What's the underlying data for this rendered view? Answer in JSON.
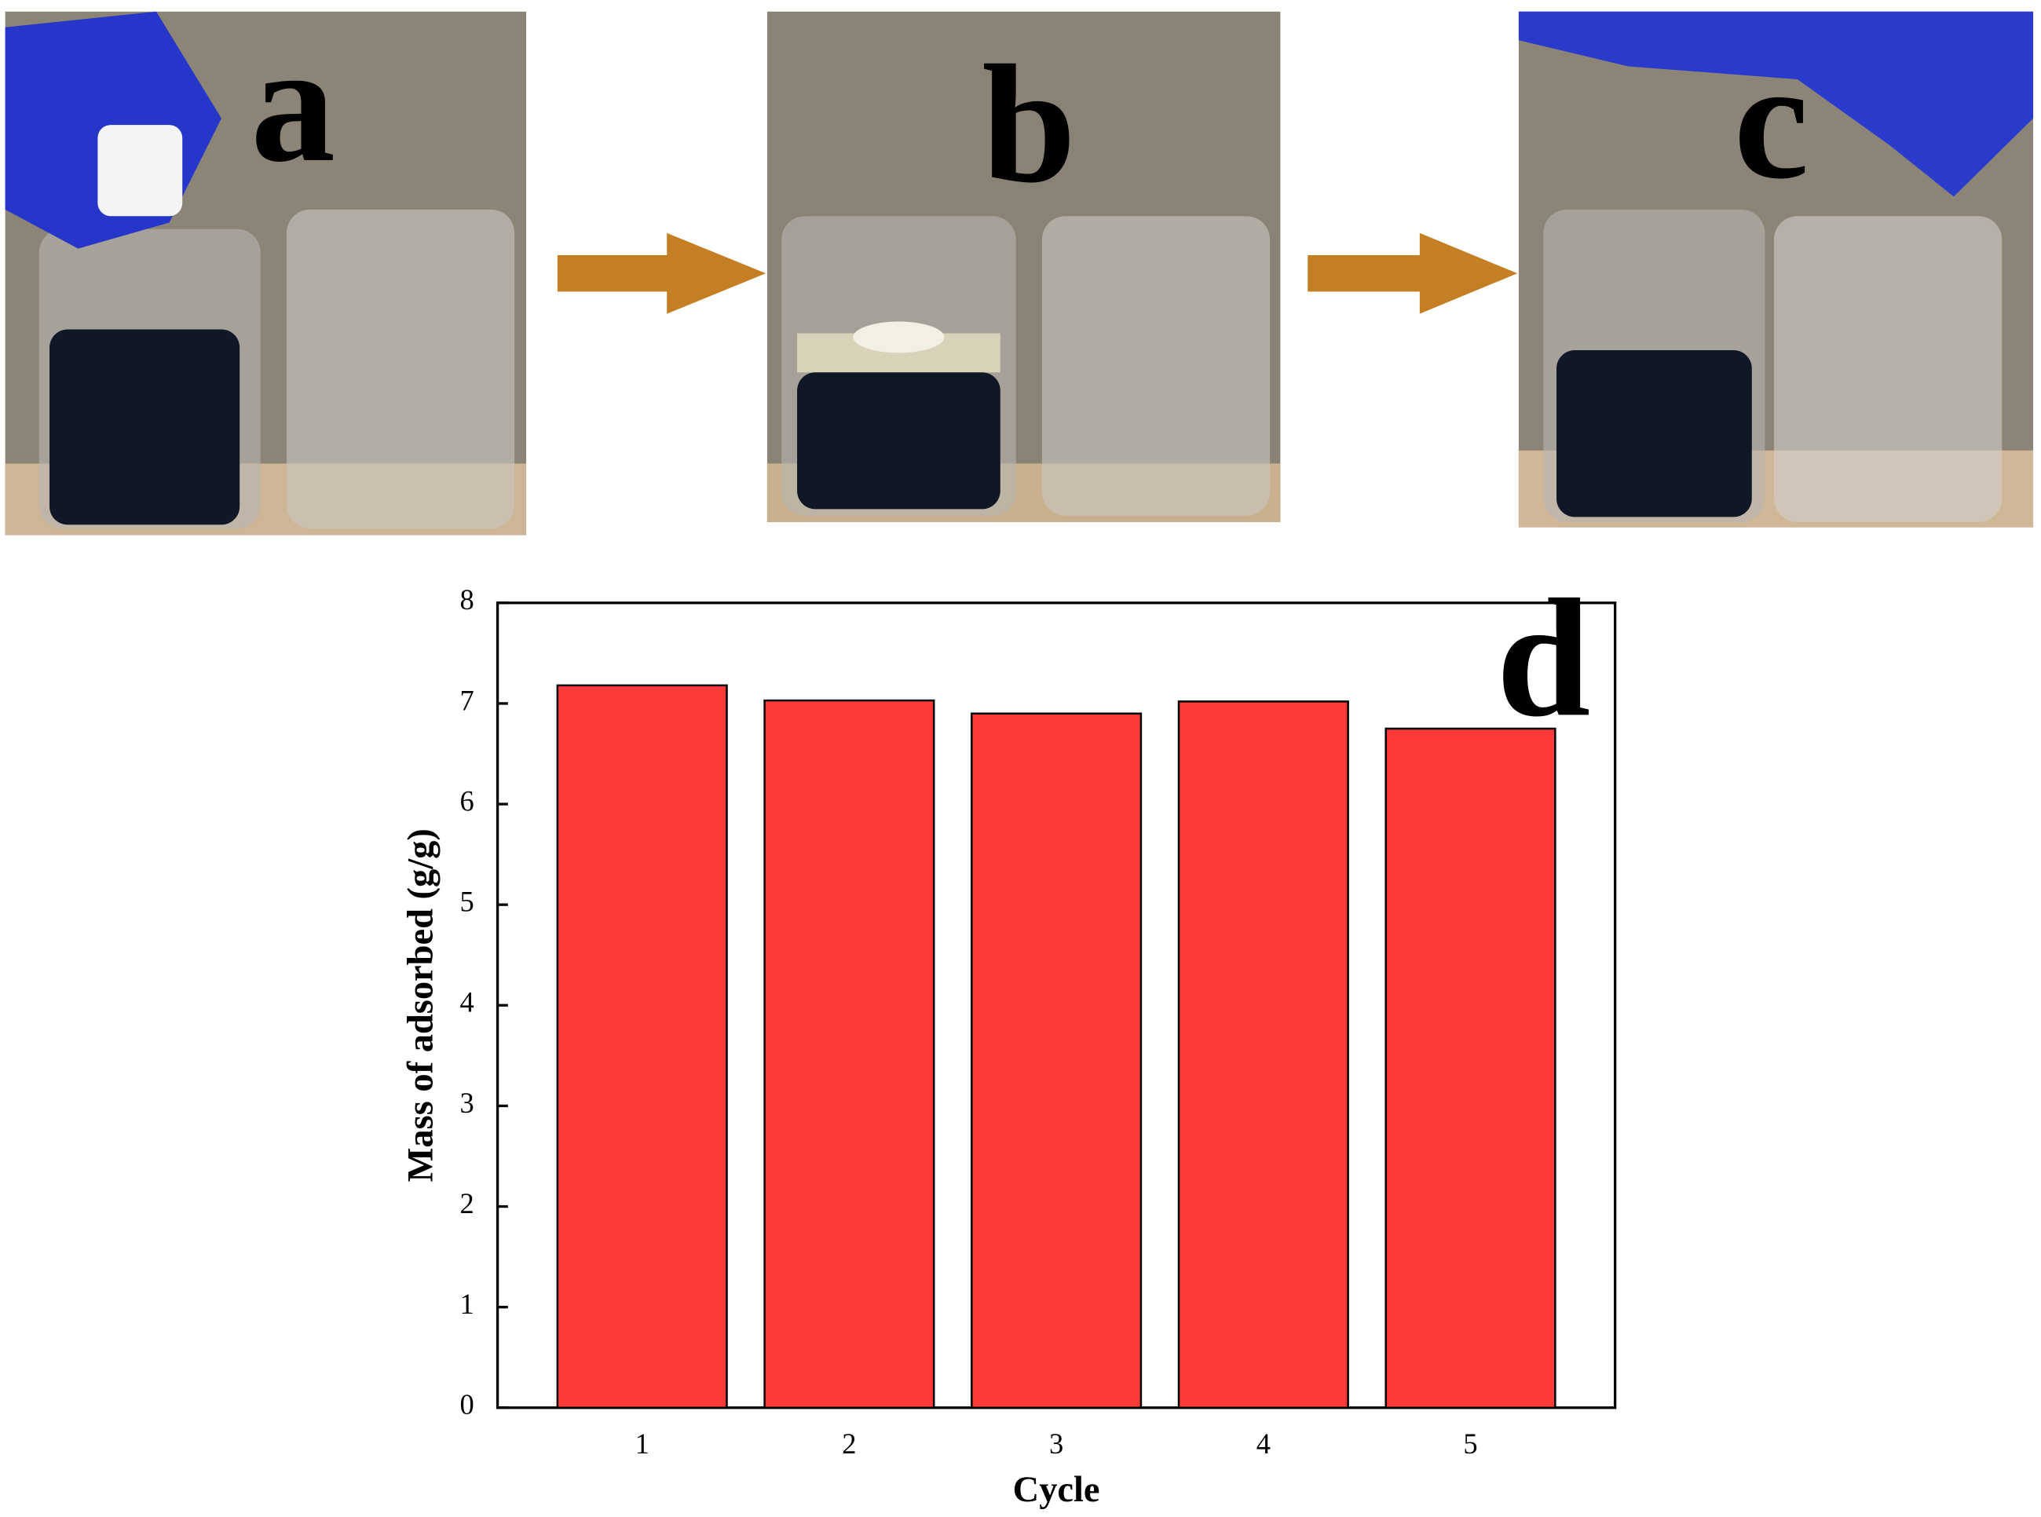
{
  "photo_labels": [
    "a",
    "b",
    "c"
  ],
  "chart_data": {
    "type": "bar",
    "panel_label": "d",
    "x_label": "Cycle",
    "y_label": "Mass of adsorbed (g/g)",
    "categories": [
      "1",
      "2",
      "3",
      "4",
      "5"
    ],
    "values": [
      7.18,
      7.03,
      6.9,
      7.02,
      6.75
    ],
    "color": "#fc3a3a",
    "ylim": [
      0,
      8
    ],
    "yticks": [
      0,
      1,
      2,
      3,
      4,
      5,
      6,
      7,
      8
    ]
  }
}
